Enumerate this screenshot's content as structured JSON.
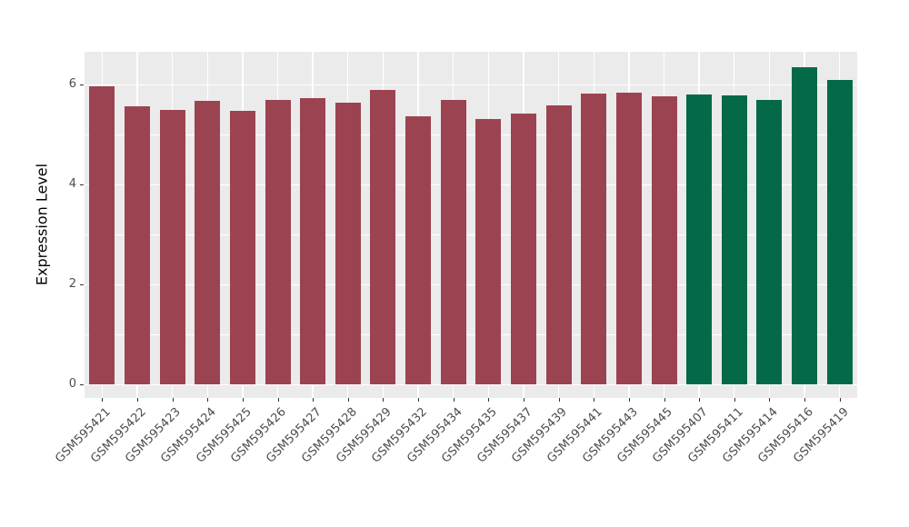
{
  "style": {
    "page_bg": "#FFFFFF",
    "panel_bg": "#EBEBEB",
    "grid_color": "#FFFFFF",
    "tick_mark_color": "#333333",
    "tick_label_color": "#4D4D4D",
    "axis_title_color": "#000000",
    "bar_color_red": "#9C4351",
    "bar_color_green": "#046948"
  },
  "chart_data": {
    "type": "bar",
    "title": "",
    "xlabel": "",
    "ylabel": "Expression Level",
    "ylim": [
      0,
      6.65
    ],
    "yticks": [
      0,
      2,
      4,
      6
    ],
    "yticks_minor": [
      1,
      3,
      5
    ],
    "grid": "major+minor horizontal white, vertical white at bar centers",
    "legend_position": "none",
    "categories": [
      "GSM595421",
      "GSM595422",
      "GSM595423",
      "GSM595424",
      "GSM595425",
      "GSM595426",
      "GSM595427",
      "GSM595428",
      "GSM595429",
      "GSM595432",
      "GSM595434",
      "GSM595435",
      "GSM595437",
      "GSM595439",
      "GSM595441",
      "GSM595443",
      "GSM595445",
      "GSM595407",
      "GSM595411",
      "GSM595414",
      "GSM595416",
      "GSM595419"
    ],
    "values": [
      5.96,
      5.56,
      5.49,
      5.67,
      5.47,
      5.7,
      5.72,
      5.64,
      5.89,
      5.36,
      5.69,
      5.31,
      5.41,
      5.59,
      5.81,
      5.83,
      5.76,
      5.8,
      5.78,
      5.7,
      6.34,
      6.1
    ],
    "bar_colors": [
      "#9C4351",
      "#9C4351",
      "#9C4351",
      "#9C4351",
      "#9C4351",
      "#9C4351",
      "#9C4351",
      "#9C4351",
      "#9C4351",
      "#9C4351",
      "#9C4351",
      "#9C4351",
      "#9C4351",
      "#9C4351",
      "#9C4351",
      "#9C4351",
      "#9C4351",
      "#046948",
      "#046948",
      "#046948",
      "#046948",
      "#046948"
    ]
  }
}
